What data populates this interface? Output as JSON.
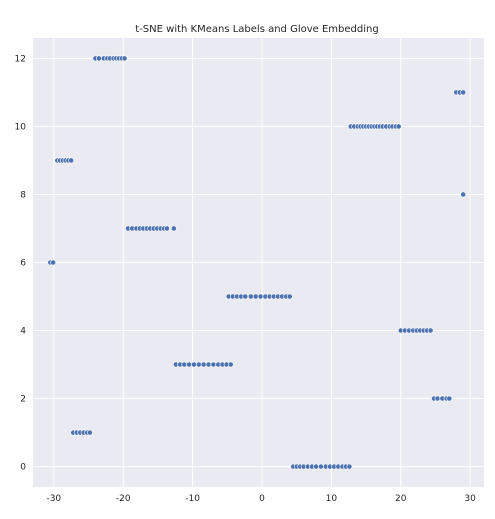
{
  "chart_data": {
    "type": "scatter",
    "title": "t-SNE with KMeans Labels and Glove Embedding",
    "xlabel": "",
    "ylabel": "",
    "xlim": [
      -33,
      32
    ],
    "ylim": [
      -0.6,
      12.6
    ],
    "x_ticks": [
      -30,
      -20,
      -10,
      0,
      10,
      20,
      30
    ],
    "y_ticks": [
      0,
      2,
      4,
      6,
      8,
      10,
      12
    ],
    "grid": true,
    "point_color": "#4c72b0",
    "background_color": "#eaeaf2",
    "series": [
      {
        "points": [
          [
            -24.0,
            12
          ],
          [
            -23.5,
            12
          ],
          [
            -22.8,
            12
          ],
          [
            -22.3,
            12
          ],
          [
            -21.9,
            12
          ],
          [
            -21.4,
            12
          ],
          [
            -21.0,
            12
          ],
          [
            -20.6,
            12
          ],
          [
            -20.2,
            12
          ],
          [
            -19.8,
            12
          ],
          [
            28.0,
            11
          ],
          [
            28.5,
            11
          ],
          [
            29.0,
            11
          ],
          [
            12.8,
            10
          ],
          [
            13.3,
            10
          ],
          [
            13.8,
            10
          ],
          [
            14.2,
            10
          ],
          [
            14.6,
            10
          ],
          [
            15.0,
            10
          ],
          [
            15.4,
            10
          ],
          [
            15.8,
            10
          ],
          [
            16.2,
            10
          ],
          [
            16.6,
            10
          ],
          [
            17.0,
            10
          ],
          [
            17.4,
            10
          ],
          [
            17.9,
            10
          ],
          [
            18.4,
            10
          ],
          [
            18.8,
            10
          ],
          [
            19.3,
            10
          ],
          [
            19.7,
            10
          ],
          [
            -29.5,
            9
          ],
          [
            -29.1,
            9
          ],
          [
            -28.7,
            9
          ],
          [
            -28.3,
            9
          ],
          [
            -27.9,
            9
          ],
          [
            -27.5,
            9
          ],
          [
            29.0,
            8
          ],
          [
            -19.3,
            7
          ],
          [
            -18.7,
            7
          ],
          [
            -18.1,
            7
          ],
          [
            -17.6,
            7
          ],
          [
            -17.1,
            7
          ],
          [
            -16.6,
            7
          ],
          [
            -16.1,
            7
          ],
          [
            -15.6,
            7
          ],
          [
            -15.1,
            7
          ],
          [
            -14.6,
            7
          ],
          [
            -14.1,
            7
          ],
          [
            -13.7,
            7
          ],
          [
            -12.7,
            7
          ],
          [
            -30.5,
            6
          ],
          [
            -30.1,
            6
          ],
          [
            -4.8,
            5
          ],
          [
            -4.2,
            5
          ],
          [
            -3.6,
            5
          ],
          [
            -3.0,
            5
          ],
          [
            -2.4,
            5
          ],
          [
            -1.6,
            5
          ],
          [
            -0.9,
            5
          ],
          [
            -0.2,
            5
          ],
          [
            0.5,
            5
          ],
          [
            1.1,
            5
          ],
          [
            1.7,
            5
          ],
          [
            2.3,
            5
          ],
          [
            2.9,
            5
          ],
          [
            3.5,
            5
          ],
          [
            4.0,
            5
          ],
          [
            20.0,
            4
          ],
          [
            20.6,
            4
          ],
          [
            21.2,
            4
          ],
          [
            21.8,
            4
          ],
          [
            22.3,
            4
          ],
          [
            22.8,
            4
          ],
          [
            23.3,
            4
          ],
          [
            23.8,
            4
          ],
          [
            24.3,
            4
          ],
          [
            -12.4,
            3
          ],
          [
            -11.8,
            3
          ],
          [
            -11.2,
            3
          ],
          [
            -10.5,
            3
          ],
          [
            -9.8,
            3
          ],
          [
            -9.1,
            3
          ],
          [
            -8.4,
            3
          ],
          [
            -7.7,
            3
          ],
          [
            -7.0,
            3
          ],
          [
            -6.3,
            3
          ],
          [
            -5.7,
            3
          ],
          [
            -5.1,
            3
          ],
          [
            -4.5,
            3
          ],
          [
            24.8,
            2
          ],
          [
            25.3,
            2
          ],
          [
            26.0,
            2
          ],
          [
            26.6,
            2
          ],
          [
            27.0,
            2
          ],
          [
            -27.2,
            1
          ],
          [
            -26.7,
            1
          ],
          [
            -26.2,
            1
          ],
          [
            -25.7,
            1
          ],
          [
            -25.2,
            1
          ],
          [
            -24.8,
            1
          ],
          [
            4.5,
            0
          ],
          [
            5.0,
            0
          ],
          [
            5.5,
            0
          ],
          [
            6.0,
            0
          ],
          [
            6.6,
            0
          ],
          [
            7.2,
            0
          ],
          [
            7.8,
            0
          ],
          [
            8.5,
            0
          ],
          [
            9.2,
            0
          ],
          [
            9.8,
            0
          ],
          [
            10.4,
            0
          ],
          [
            11.0,
            0
          ],
          [
            11.6,
            0
          ],
          [
            12.1,
            0
          ],
          [
            12.6,
            0
          ]
        ]
      }
    ]
  }
}
